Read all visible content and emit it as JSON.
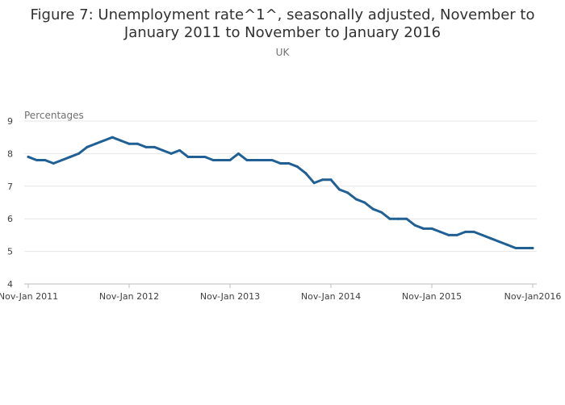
{
  "chart_data": {
    "type": "line",
    "title": "Figure 7: Unemployment rate^1^, seasonally adjusted, November to January 2011 to November to January 2016",
    "title_lines": [
      "Figure 7: Unemployment rate^1^, seasonally adjusted, November to",
      "January 2011 to November to January 2016"
    ],
    "subtitle": "UK",
    "ylabel": "Percentages",
    "xlabel": "",
    "ylim": [
      4,
      9
    ],
    "yticks": [
      4,
      5,
      6,
      7,
      8,
      9
    ],
    "grid": true,
    "xtick_labels": [
      {
        "index": 0,
        "label": "Nov-Jan 2011"
      },
      {
        "index": 12,
        "label": "Nov-Jan 2012"
      },
      {
        "index": 24,
        "label": "Nov-Jan 2013"
      },
      {
        "index": 36,
        "label": "Nov-Jan 2014"
      },
      {
        "index": 48,
        "label": "Nov-Jan 2015"
      },
      {
        "index": 60,
        "label": "Nov-Jan2016"
      }
    ],
    "series": [
      {
        "name": "Unemployment rate",
        "color": "#206095",
        "values": [
          7.9,
          7.8,
          7.8,
          7.7,
          7.8,
          7.9,
          8.0,
          8.2,
          8.3,
          8.4,
          8.5,
          8.4,
          8.3,
          8.3,
          8.2,
          8.2,
          8.1,
          8.0,
          8.1,
          7.9,
          7.9,
          7.9,
          7.8,
          7.8,
          7.8,
          8.0,
          7.8,
          7.8,
          7.8,
          7.8,
          7.7,
          7.7,
          7.6,
          7.4,
          7.1,
          7.2,
          7.2,
          6.9,
          6.8,
          6.6,
          6.5,
          6.3,
          6.2,
          6.0,
          6.0,
          6.0,
          5.8,
          5.7,
          5.7,
          5.6,
          5.5,
          5.5,
          5.6,
          5.6,
          5.5,
          5.4,
          5.3,
          5.2,
          5.1,
          5.1,
          5.1
        ]
      }
    ]
  }
}
